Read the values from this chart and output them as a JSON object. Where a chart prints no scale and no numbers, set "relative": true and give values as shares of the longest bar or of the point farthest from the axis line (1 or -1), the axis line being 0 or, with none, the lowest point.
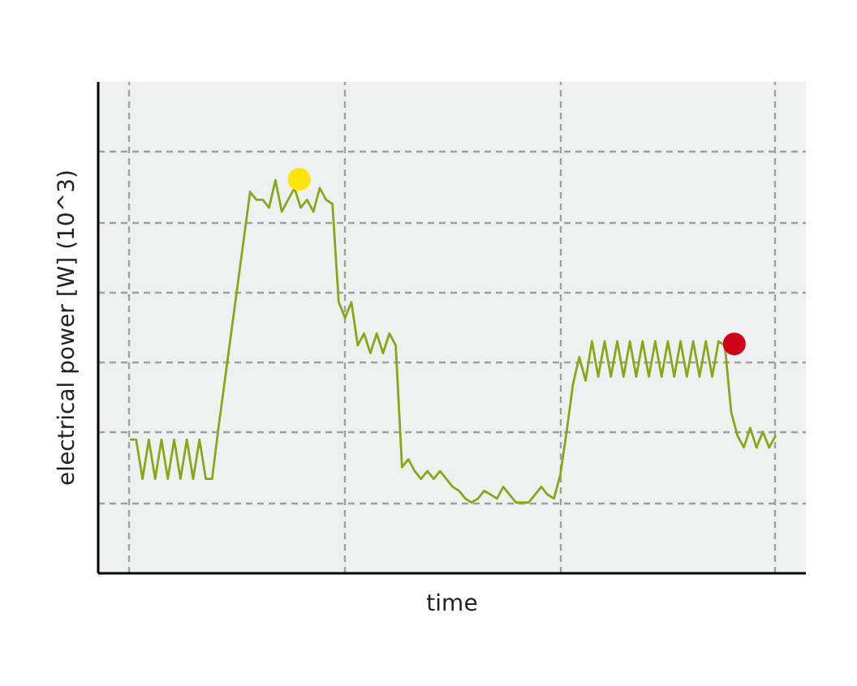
{
  "chart_data": {
    "type": "line",
    "relative": true,
    "xlabel": "time",
    "ylabel": "electrical power [W] (10^3)",
    "grid": true,
    "color": "#8aa61a",
    "categories": [
      null,
      null,
      null,
      null,
      null,
      null,
      null,
      null,
      null,
      null,
      null,
      null,
      null,
      null,
      null,
      null,
      null,
      null,
      null,
      null,
      null,
      null,
      null,
      null,
      null,
      null,
      null,
      null,
      null,
      null,
      null,
      null,
      null,
      null,
      null,
      null,
      null,
      null,
      null,
      null,
      null,
      null,
      null,
      null,
      null,
      null,
      null,
      null,
      null,
      null,
      null,
      null,
      null,
      null,
      null,
      null,
      null,
      null,
      null,
      null,
      null,
      null,
      null,
      null,
      null,
      null,
      null,
      null,
      null,
      null,
      null,
      null,
      null,
      null,
      null,
      null,
      null,
      null,
      null,
      null,
      null,
      null,
      null,
      null,
      null,
      null,
      null,
      null,
      null,
      null,
      null,
      null,
      null,
      null,
      null,
      null,
      null,
      null,
      null,
      null,
      null,
      null,
      null
    ],
    "values": [
      0.34,
      0.34,
      0.24,
      0.34,
      0.24,
      0.34,
      0.24,
      0.34,
      0.24,
      0.34,
      0.24,
      0.34,
      0.24,
      0.24,
      0.37,
      0.49,
      0.61,
      0.73,
      0.85,
      0.97,
      0.95,
      0.95,
      0.93,
      1.0,
      0.92,
      0.95,
      0.98,
      0.93,
      0.95,
      0.92,
      0.98,
      0.95,
      0.94,
      0.69,
      0.65,
      0.69,
      0.58,
      0.61,
      0.56,
      0.61,
      0.56,
      0.61,
      0.58,
      0.27,
      0.29,
      0.26,
      0.24,
      0.26,
      0.24,
      0.26,
      0.24,
      0.22,
      0.21,
      0.19,
      0.18,
      0.19,
      0.21,
      0.2,
      0.19,
      0.22,
      0.2,
      0.18,
      0.18,
      0.18,
      0.2,
      0.22,
      0.2,
      0.19,
      0.25,
      0.36,
      0.48,
      0.55,
      0.49,
      0.59,
      0.5,
      0.59,
      0.5,
      0.59,
      0.5,
      0.59,
      0.5,
      0.59,
      0.5,
      0.59,
      0.5,
      0.59,
      0.5,
      0.59,
      0.5,
      0.59,
      0.5,
      0.59,
      0.5,
      0.59,
      0.58,
      0.41,
      0.35,
      0.32,
      0.37,
      0.32,
      0.36,
      0.32,
      0.35
    ]
  }
}
